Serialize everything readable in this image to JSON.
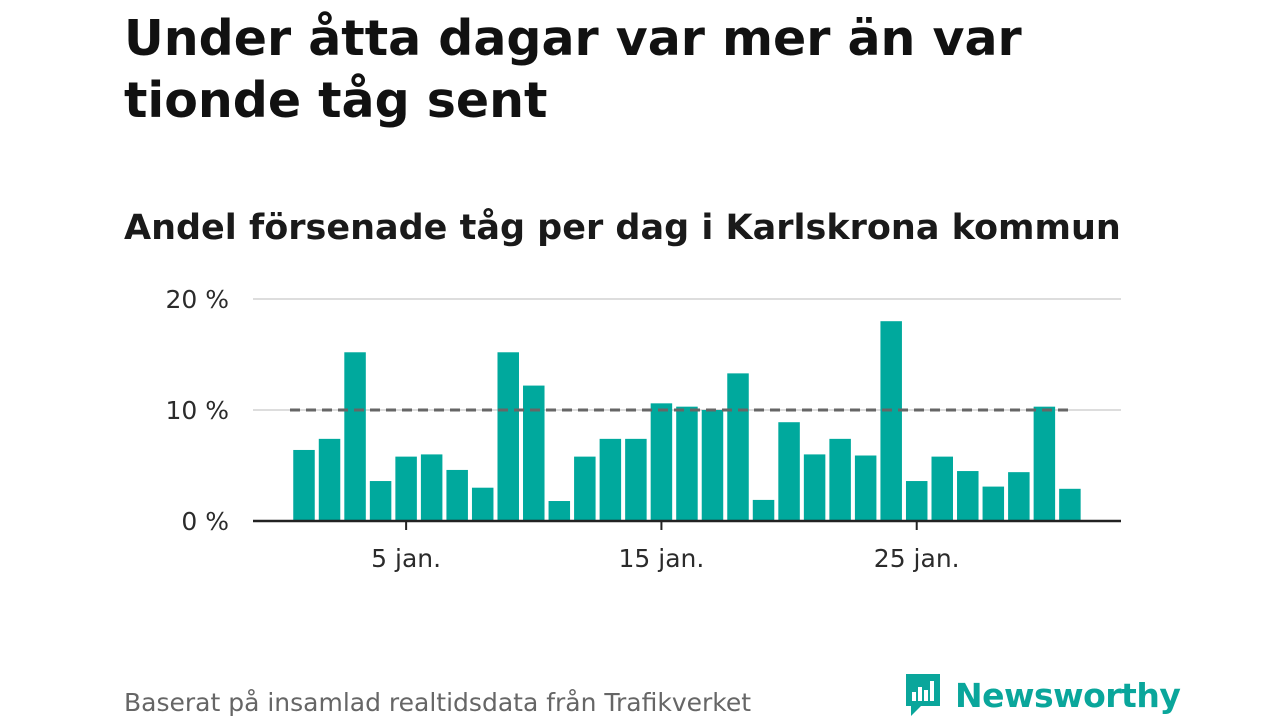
{
  "title": "Under åtta dagar var mer än var tionde tåg sent",
  "subtitle": "Andel försenade tåg per dag i Karlskrona kommun",
  "source": "Baserat på insamlad realtidsdata från Trafikverket",
  "brand": {
    "name": "Newsworthy",
    "icon": "newsworthy-logo-icon",
    "color": "#0aa69b"
  },
  "colors": {
    "bar": "#00a99d",
    "reference": "#666666",
    "grid": "#dddddd",
    "axis": "#222222"
  },
  "chart_data": {
    "type": "bar",
    "x_unit": "day of January",
    "days": [
      1,
      2,
      3,
      4,
      5,
      6,
      7,
      8,
      9,
      10,
      11,
      12,
      13,
      14,
      15,
      16,
      17,
      18,
      19,
      20,
      21,
      22,
      23,
      24,
      25,
      26,
      27,
      28,
      29,
      30,
      31
    ],
    "values": [
      6.4,
      7.4,
      15.2,
      3.6,
      5.8,
      6.0,
      4.6,
      3.0,
      15.2,
      12.2,
      1.8,
      5.8,
      7.4,
      7.4,
      10.6,
      10.3,
      10.0,
      13.3,
      1.9,
      8.9,
      6.0,
      7.4,
      5.9,
      18.0,
      3.6,
      5.8,
      4.5,
      3.1,
      4.4,
      10.3,
      2.9
    ],
    "y_unit": "%",
    "ylim": [
      0,
      20
    ],
    "yticks": [
      {
        "value": 0,
        "label": "0 %"
      },
      {
        "value": 10,
        "label": "10 %"
      },
      {
        "value": 20,
        "label": "20 %"
      }
    ],
    "xticks": [
      {
        "day": 5,
        "label": "5 jan."
      },
      {
        "day": 15,
        "label": "15 jan."
      },
      {
        "day": 25,
        "label": "25 jan."
      }
    ],
    "reference_line": {
      "value": 10,
      "style": "dashed"
    },
    "grid": true,
    "legend": false
  }
}
